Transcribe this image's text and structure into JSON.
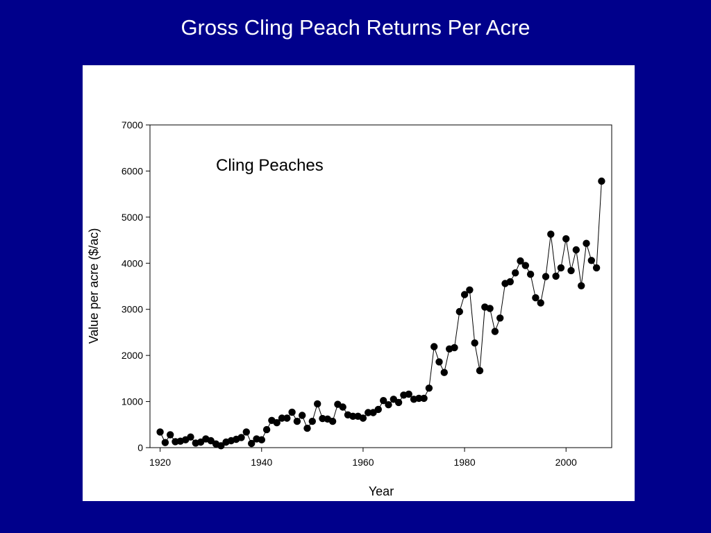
{
  "slide": {
    "title": "Gross Cling Peach Returns Per Acre",
    "background_color": "#00008b",
    "panel_color": "#ffffff"
  },
  "chart_data": {
    "type": "line",
    "title": "",
    "annotation": "Cling Peaches",
    "xlabel": "Year",
    "ylabel": "Value per acre ($/ac)",
    "xlim": [
      1918,
      2009
    ],
    "ylim": [
      0,
      7000
    ],
    "xticks": [
      1920,
      1940,
      1960,
      1980,
      2000
    ],
    "yticks": [
      0,
      1000,
      2000,
      3000,
      4000,
      5000,
      6000,
      7000
    ],
    "grid": false,
    "marker": "filled-circle",
    "line_color": "#000000",
    "series": [
      {
        "x": [
          1920,
          1921,
          1922,
          1923,
          1924,
          1925,
          1926,
          1927,
          1928,
          1929,
          1930,
          1931,
          1932,
          1933,
          1934,
          1935,
          1936,
          1937,
          1938,
          1939,
          1940,
          1941,
          1942,
          1943,
          1944,
          1945,
          1946,
          1947,
          1948,
          1949,
          1950,
          1951,
          1952,
          1953,
          1954,
          1955,
          1956,
          1957,
          1958,
          1959,
          1960,
          1961,
          1962,
          1963,
          1964,
          1965,
          1966,
          1967,
          1968,
          1969,
          1970,
          1971,
          1972,
          1973,
          1974,
          1975,
          1976,
          1977,
          1978,
          1979,
          1980,
          1981,
          1982,
          1983,
          1984,
          1985,
          1986,
          1987,
          1988,
          1989,
          1990,
          1991,
          1992,
          1993,
          1994,
          1995,
          1996,
          1997,
          1998,
          1999,
          2000,
          2001,
          2002,
          2003,
          2004,
          2005,
          2006,
          2007
        ],
        "values": [
          340,
          110,
          280,
          130,
          140,
          170,
          230,
          100,
          120,
          190,
          150,
          80,
          40,
          120,
          150,
          180,
          220,
          340,
          90,
          190,
          170,
          390,
          590,
          540,
          640,
          640,
          770,
          570,
          700,
          420,
          570,
          950,
          630,
          620,
          570,
          940,
          880,
          710,
          680,
          680,
          640,
          760,
          760,
          830,
          1020,
          930,
          1050,
          980,
          1140,
          1160,
          1050,
          1070,
          1070,
          1290,
          2190,
          1860,
          1630,
          2140,
          2170,
          2950,
          3320,
          3420,
          2270,
          1670,
          3050,
          3020,
          2520,
          2810,
          3560,
          3600,
          3790,
          4050,
          3950,
          3760,
          3250,
          3140,
          3710,
          4630,
          3720,
          3900,
          4530,
          3840,
          4290,
          3510,
          4430,
          4060,
          3900,
          5780
        ]
      }
    ]
  }
}
